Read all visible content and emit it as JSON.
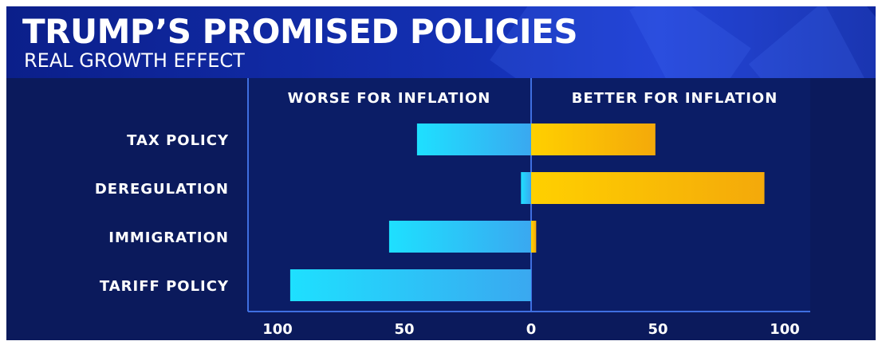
{
  "header": {
    "title": "TRUMP’S PROMISED POLICIES",
    "subtitle": "REAL GROWTH EFFECT"
  },
  "colors": {
    "background": "#0b1a5c",
    "header": "#1431b5",
    "worse_bar": "#27c6f5",
    "better_bar": "#ffc20e",
    "axis": "#3f6fe0"
  },
  "chart_data": {
    "type": "bar",
    "orientation": "horizontal",
    "stacked": "diverging",
    "left_label": "WORSE FOR INFLATION",
    "right_label": "BETTER FOR INFLATION",
    "categories": [
      "TAX  POLICY",
      "DEREGULATION",
      "IMMIGRATION",
      "TARIFF POLICY"
    ],
    "series": [
      {
        "key": "worse",
        "values": [
          45,
          4,
          56,
          95
        ]
      },
      {
        "key": "better",
        "values": [
          49,
          92,
          2,
          0
        ]
      }
    ],
    "xlim": [
      -100,
      100
    ],
    "ticks": [
      {
        "value": -100,
        "label": "100"
      },
      {
        "value": -50,
        "label": "50"
      },
      {
        "value": 0,
        "label": "0"
      },
      {
        "value": 50,
        "label": "50"
      },
      {
        "value": 100,
        "label": "100"
      }
    ],
    "grid": false,
    "legend": "none"
  }
}
